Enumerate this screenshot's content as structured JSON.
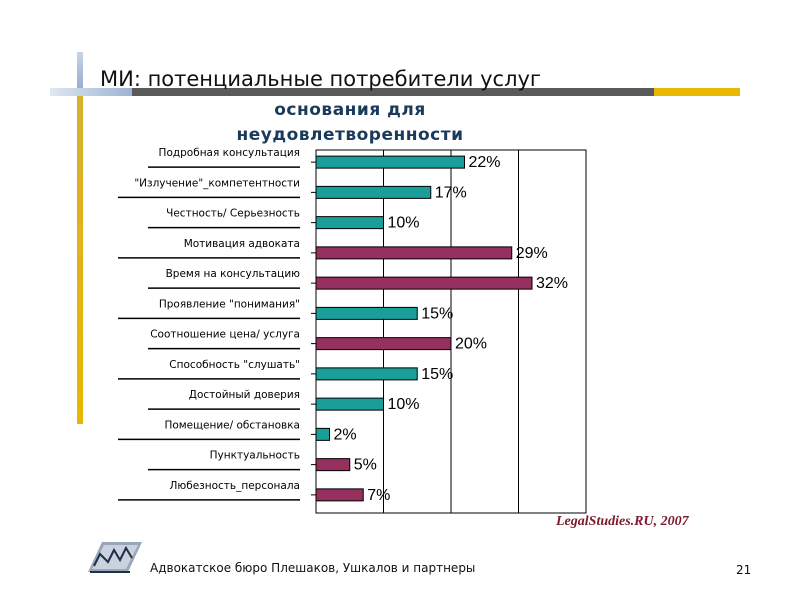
{
  "slide": {
    "title": "МИ: потенциальные потребители услуг",
    "subtitle_line1": "основания для",
    "subtitle_line2": "неудовлетворенности",
    "source": "LegalStudies.RU, 2007",
    "footer": "Адвокатское бюро Плешаков, Ушкалов и партнеры",
    "page_number": "21"
  },
  "colors": {
    "teal": "#1a9e9a",
    "maroon": "#96305e",
    "accent_gold": "#e8b800",
    "title_blue": "#1a3a5c"
  },
  "chart_data": {
    "type": "bar",
    "orientation": "horizontal",
    "categories": [
      "Подробная консультация",
      "\"Излучение\"_компетентности",
      "Честность/ Серьезность",
      "Мотивация адвоката",
      "Время на консультацию",
      "Проявление \"понимания\"",
      "Соотношение цена/ услуга",
      "Способность \"слушать\"",
      "Достойный доверия",
      "Помещение/ обстановка",
      "Пунктуальность",
      "Любезность_персонала"
    ],
    "values": [
      22,
      17,
      10,
      29,
      32,
      15,
      20,
      15,
      10,
      2,
      5,
      7
    ],
    "value_labels": [
      "22%",
      "17%",
      "10%",
      "29%",
      "32%",
      "15%",
      "20%",
      "15%",
      "10%",
      "2%",
      "5%",
      "7%"
    ],
    "bar_colors": [
      "teal",
      "teal",
      "teal",
      "maroon",
      "maroon",
      "teal",
      "maroon",
      "teal",
      "teal",
      "teal",
      "maroon",
      "maroon"
    ],
    "xlim": [
      0,
      40
    ],
    "grid": "vertical",
    "legend": "none"
  }
}
